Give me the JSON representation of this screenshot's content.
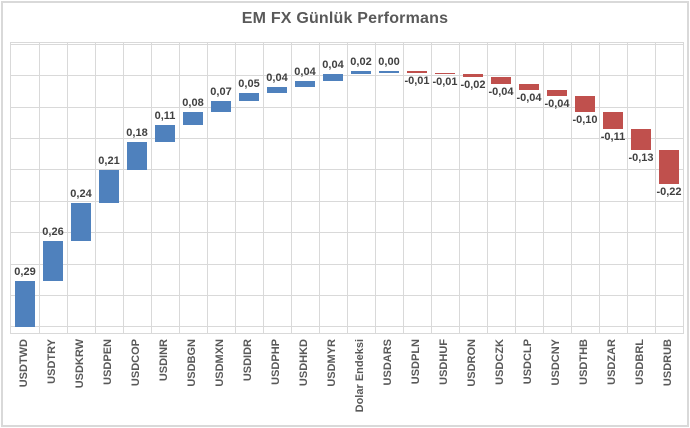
{
  "frame": {
    "background": "#ffffff",
    "border_color": "#d9d9d9"
  },
  "chart_data": {
    "type": "bar",
    "subtype": "waterfall",
    "title": "EM FX Günlük Performans",
    "categories": [
      "USDTWD",
      "USDTRY",
      "USDKRW",
      "USDPEN",
      "USDCOP",
      "USDINR",
      "USDBGN",
      "USDMXN",
      "USDIDR",
      "USDPHP",
      "USDHKD",
      "USDMYR",
      "Dolar Endeksi",
      "USDARS",
      "USDPLN",
      "USDHUF",
      "USDRON",
      "USDCZK",
      "USDCLP",
      "USDCNY",
      "USDTHB",
      "USDZAR",
      "USDBRL",
      "USDRUB"
    ],
    "values": [
      0.29,
      0.26,
      0.24,
      0.21,
      0.18,
      0.11,
      0.08,
      0.07,
      0.05,
      0.04,
      0.04,
      0.04,
      0.02,
      0.0,
      -0.01,
      -0.01,
      -0.02,
      -0.04,
      -0.04,
      -0.04,
      -0.1,
      -0.11,
      -0.13,
      -0.22
    ],
    "value_labels": [
      "0,29",
      "0,26",
      "0,24",
      "0,21",
      "0,18",
      "0,11",
      "0,08",
      "0,07",
      "0,05",
      "0,04",
      "0,04",
      "0,04",
      "0,02",
      "0,00",
      "-0,01",
      "-0,01",
      "-0,02",
      "-0,04",
      "-0,04",
      "-0,04",
      "-0,10",
      "-0,11",
      "-0,13",
      "-0,22"
    ],
    "positive_color": "#4f81bd",
    "negative_color": "#c0504d",
    "grid": true,
    "gridline_color": "#d9d9d9",
    "ylim": [
      -0.04,
      1.81
    ],
    "gridline_interval": 0.2,
    "legend_position": "none",
    "xlabel": "",
    "ylabel": ""
  }
}
